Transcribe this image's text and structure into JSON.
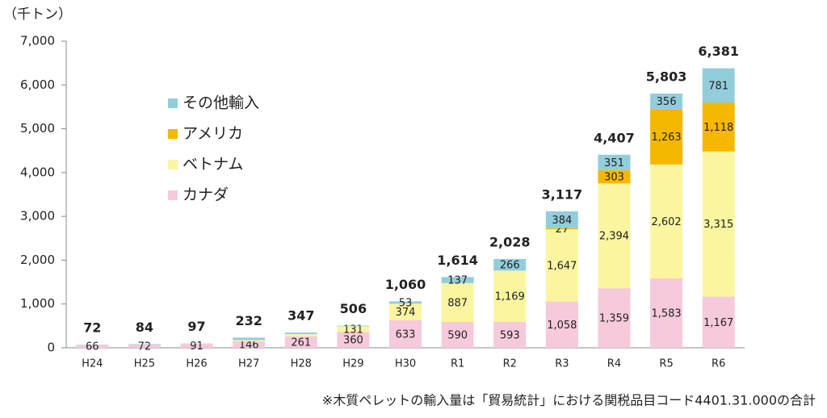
{
  "chart_data": {
    "type": "stacked-bar",
    "unit_label": "（千トン）",
    "footnote": "※木質ペレットの輸入量は「貿易統計」における関税品目コード4401.31.000の合計",
    "categories": [
      "H24",
      "H25",
      "H26",
      "H27",
      "H28",
      "H29",
      "H30",
      "R1",
      "R2",
      "R3",
      "R4",
      "R5",
      "R6"
    ],
    "series": [
      {
        "name": "カナダ",
        "color": "#f6c9dc",
        "values": [
          66,
          72,
          91,
          146,
          261,
          360,
          633,
          590,
          593,
          1058,
          1359,
          1583,
          1167
        ],
        "value_labels": [
          "66",
          "72",
          "91",
          "146",
          "261",
          "360",
          "633",
          "590",
          "593",
          "1,058",
          "1,359",
          "1,583",
          "1,167"
        ]
      },
      {
        "name": "ベトナム",
        "color": "#fbf5a0",
        "values": [
          null,
          null,
          null,
          30,
          50,
          131,
          374,
          887,
          1169,
          1647,
          2394,
          2602,
          3315
        ],
        "value_labels": [
          null,
          null,
          null,
          null,
          null,
          "131",
          "374",
          "887",
          "1,169",
          "1,647",
          "2,394",
          "2,602",
          "3,315"
        ]
      },
      {
        "name": "アメリカ",
        "color": "#f5b700",
        "values": [
          null,
          null,
          null,
          null,
          null,
          null,
          null,
          null,
          null,
          27,
          303,
          1263,
          1118
        ],
        "value_labels": [
          null,
          null,
          null,
          null,
          null,
          null,
          null,
          null,
          null,
          "27",
          "303",
          "1,263",
          "1,118"
        ]
      },
      {
        "name": "その他輸入",
        "color": "#92cddc",
        "values": [
          6,
          12,
          6,
          56,
          36,
          15,
          53,
          137,
          266,
          384,
          351,
          356,
          781
        ],
        "value_labels": [
          null,
          null,
          null,
          null,
          null,
          null,
          "53",
          "137",
          "266",
          "384",
          "351",
          "356",
          "781"
        ]
      }
    ],
    "totals": [
      72,
      84,
      97,
      232,
      347,
      506,
      1060,
      1614,
      2028,
      3117,
      4407,
      5803,
      6381
    ],
    "total_labels": [
      "72",
      "84",
      "97",
      "232",
      "347",
      "506",
      "1,060",
      "1,614",
      "2,028",
      "3,117",
      "4,407",
      "5,803",
      "6,381"
    ],
    "ylim": [
      0,
      7000
    ],
    "yticks": [
      0,
      {
        "value": 1000,
        "label": "1,000"
      },
      {
        "value": 2000,
        "label": "2,000"
      },
      {
        "value": 3000,
        "label": "3,000"
      },
      {
        "value": 4000,
        "label": "4,000"
      },
      {
        "value": 5000,
        "label": "5,000"
      },
      {
        "value": 6000,
        "label": "6,000"
      },
      {
        "value": 7000,
        "label": "7,000"
      }
    ],
    "legend": "upper-left"
  }
}
